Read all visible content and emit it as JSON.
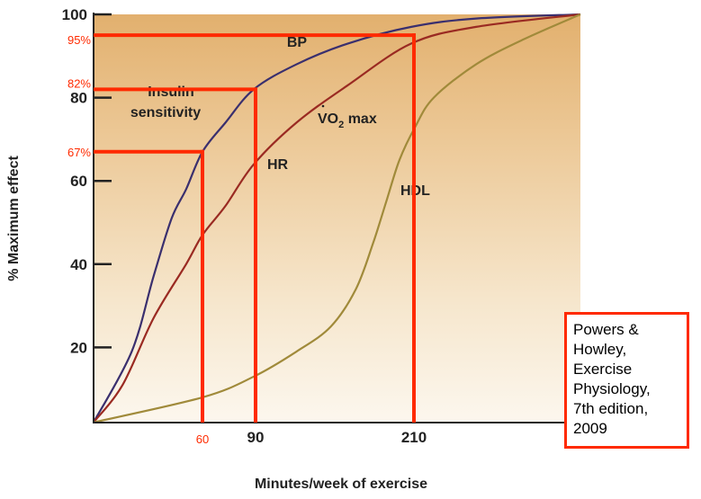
{
  "chart_data": {
    "type": "line",
    "xlabel": "Minutes/week of exercise",
    "ylabel": "% Maximum effect",
    "ylim": [
      0,
      100
    ],
    "y_ticks": [
      "20",
      "40",
      "60",
      "80",
      "100"
    ],
    "x_ticks": [
      "90",
      "210"
    ],
    "grid": false,
    "background": "tan gradient fading to white at bottom",
    "series": [
      {
        "name": "BP",
        "color": "#3a2f6e",
        "x": [
          0,
          21,
          33,
          43,
          51,
          60,
          73,
          89,
          121,
          160,
          208,
          257,
          336
        ],
        "y": [
          2,
          19,
          37,
          51,
          58,
          67,
          74,
          82,
          88,
          93,
          97,
          99,
          100
        ]
      },
      {
        "name": "VO2 max / HR",
        "color": "#9a2a22",
        "x": [
          0,
          16,
          33,
          51,
          60,
          73,
          89,
          121,
          160,
          208,
          257,
          336
        ],
        "y": [
          2,
          11,
          27,
          40,
          47,
          54,
          64,
          74,
          83,
          93,
          97,
          100
        ]
      },
      {
        "name": "HDL",
        "color": "#a08a3a",
        "x": [
          0,
          60,
          89,
          121,
          147,
          166,
          179,
          189,
          199,
          211,
          225,
          257,
          293,
          336
        ],
        "y": [
          2,
          8,
          13,
          19,
          25,
          34,
          45,
          55,
          65,
          73,
          80,
          88,
          94,
          100
        ]
      }
    ],
    "curve_labels": {
      "bp": "BP",
      "insulin_line1": "Insulin",
      "insulin_line2": "sensitivity",
      "vo2": "VO",
      "vo2_sub": "2",
      "vo2_rest": " max",
      "hr": "HR",
      "hdl": "HDL"
    },
    "annotations": {
      "color": "#ff2a00",
      "reference_points": [
        {
          "x": 60,
          "y": 67,
          "x_label": "60",
          "y_label": "67%"
        },
        {
          "x": 90,
          "y": 82,
          "x_label": "",
          "y_label": "82%"
        },
        {
          "x": 210,
          "y": 95,
          "x_label": "",
          "y_label": "95%"
        }
      ]
    }
  },
  "citation": {
    "lines": [
      "Powers &",
      "Howley,",
      "Exercise",
      "Physiology,",
      "7th edition,",
      "2009"
    ]
  }
}
